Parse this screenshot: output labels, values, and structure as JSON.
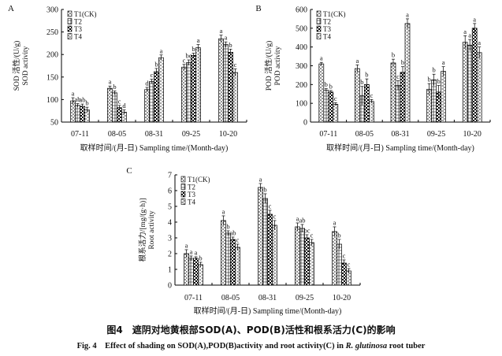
{
  "figure": {
    "caption_cn": "图4　遮阴对地黄根部SOD(A)、POD(B)活性和根系活力(C)的影响",
    "caption_en_prefix": "Fig. 4　Effect of shading on SOD(A),POD(B)activity and root activity(C) in",
    "caption_en_species": "R. glutinosa",
    "caption_en_suffix": "root tuber"
  },
  "colors": {
    "axis": "#000000",
    "bar_outline": "#000000",
    "text": "#111111"
  },
  "chart_data": [
    {
      "panel": "A",
      "type": "bar",
      "ylabel_cn": "SOD 活性/(U/g)",
      "ylabel_en": "SOD activity",
      "xlabel": "取样时间/(月-日) Sampling time/(Month-day)",
      "categories": [
        "07-11",
        "08-05",
        "08-31",
        "09-25",
        "10-20"
      ],
      "ylim": [
        50,
        300
      ],
      "yticks": [
        50,
        100,
        150,
        200,
        250,
        300
      ],
      "legend_position": "top-left",
      "series": [
        {
          "name": "T1(CK)",
          "pattern": "dots",
          "values": [
            97,
            125,
            122,
            172,
            235
          ],
          "errors": [
            7,
            5,
            5,
            6,
            8
          ],
          "letters": [
            "a",
            "a",
            "d",
            "c",
            "a"
          ]
        },
        {
          "name": "T2",
          "pattern": "grid",
          "values": [
            87,
            115,
            140,
            182,
            222
          ],
          "errors": [
            4,
            4,
            5,
            6,
            6
          ],
          "letters": [
            "ab",
            "b",
            "c",
            "bc",
            "a"
          ]
        },
        {
          "name": "T3",
          "pattern": "checker",
          "values": [
            85,
            82,
            162,
            198,
            205
          ],
          "errors": [
            5,
            5,
            7,
            5,
            7
          ],
          "letters": [
            "ab",
            "c",
            "b",
            "b",
            "b"
          ]
        },
        {
          "name": "T4",
          "pattern": "dash",
          "values": [
            77,
            72,
            193,
            215,
            160
          ],
          "errors": [
            6,
            5,
            6,
            7,
            8
          ],
          "letters": [
            "b",
            "d",
            "a",
            "a",
            "c"
          ]
        }
      ]
    },
    {
      "panel": "B",
      "type": "bar",
      "ylabel_cn": "POD 活性/(U/g)",
      "ylabel_en": "POD activity",
      "xlabel": "取样时间/(月-日) Sampling time/(Month-day)",
      "categories": [
        "07-11",
        "08-05",
        "08-31",
        "09-25",
        "10-20"
      ],
      "ylim": [
        0,
        600
      ],
      "yticks": [
        0,
        100,
        200,
        300,
        400,
        500,
        600
      ],
      "legend_position": "top-left",
      "series": [
        {
          "name": "T1(CK)",
          "pattern": "dots",
          "values": [
            310,
            285,
            315,
            175,
            425
          ],
          "errors": [
            8,
            20,
            20,
            30,
            35
          ],
          "letters": [
            "a",
            "a",
            "b",
            "b",
            "a"
          ]
        },
        {
          "name": "T2",
          "pattern": "grid",
          "values": [
            170,
            140,
            195,
            225,
            410
          ],
          "errors": [
            8,
            50,
            25,
            30,
            30
          ],
          "letters": [
            "b",
            "b",
            "c",
            "b",
            "a"
          ]
        },
        {
          "name": "T3",
          "pattern": "checker",
          "values": [
            160,
            200,
            265,
            160,
            500
          ],
          "errors": [
            8,
            30,
            30,
            35,
            25
          ],
          "letters": [
            "b",
            "b",
            "b",
            "b",
            "a"
          ]
        },
        {
          "name": "T4",
          "pattern": "dash",
          "values": [
            95,
            110,
            525,
            270,
            370
          ],
          "errors": [
            8,
            10,
            25,
            25,
            30
          ],
          "letters": [
            "c",
            "c",
            "a",
            "a",
            "a"
          ]
        }
      ]
    },
    {
      "panel": "C",
      "type": "bar",
      "ylabel_cn": "根系活力/[mg/(g·h)]",
      "ylabel_en": "Root activity",
      "xlabel": "取样时间/(月-日) Sampling time/(Month-day)",
      "categories": [
        "07-11",
        "08-05",
        "08-31",
        "09-25",
        "10-20"
      ],
      "ylim": [
        0,
        7
      ],
      "yticks": [
        0,
        1,
        2,
        3,
        4,
        5,
        6,
        7
      ],
      "legend_position": "top-left",
      "series": [
        {
          "name": "T1(CK)",
          "pattern": "dots",
          "values": [
            2.0,
            4.1,
            6.2,
            3.7,
            3.4
          ],
          "errors": [
            0.25,
            0.3,
            0.25,
            0.25,
            0.3
          ],
          "letters": [
            "a",
            "a",
            "a",
            "a",
            "a"
          ]
        },
        {
          "name": "T2",
          "pattern": "grid",
          "values": [
            1.7,
            3.3,
            5.5,
            3.6,
            2.6
          ],
          "errors": [
            0.15,
            0.15,
            0.3,
            0.25,
            0.3
          ],
          "letters": [
            "a",
            "b",
            "b",
            "ab",
            "b"
          ]
        },
        {
          "name": "T3",
          "pattern": "checker",
          "values": [
            1.7,
            2.9,
            4.5,
            3.0,
            1.4
          ],
          "errors": [
            0.1,
            0.15,
            0.25,
            0.2,
            0.2
          ],
          "letters": [
            "a",
            "ab",
            "c",
            "bc",
            "c"
          ]
        },
        {
          "name": "T4",
          "pattern": "dash",
          "values": [
            1.3,
            2.4,
            3.8,
            2.7,
            0.9
          ],
          "errors": [
            0.15,
            0.2,
            0.3,
            0.2,
            0.15
          ],
          "letters": [
            "b",
            "c",
            "c",
            "c",
            "c"
          ]
        }
      ]
    }
  ]
}
